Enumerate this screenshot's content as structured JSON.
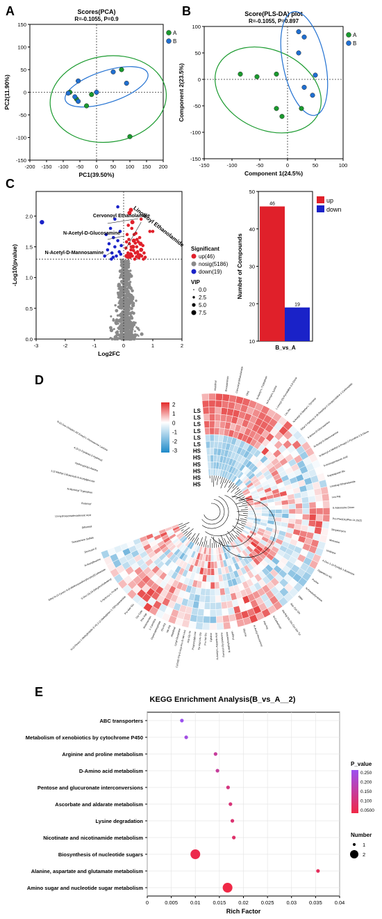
{
  "panel_labels": {
    "A": "A",
    "B": "B",
    "C": "C",
    "D": "D",
    "E": "E"
  },
  "colors": {
    "green": "#1a9a2e",
    "blue": "#1f6fd1",
    "up": "#e0202a",
    "down": "#1a22c8",
    "nosig": "#8a8a8a",
    "heat_high": "#e32a2a",
    "heat_mid": "#ffffff",
    "heat_low": "#1f8ac9"
  },
  "chart_data": [
    {
      "id": "A",
      "type": "scatter",
      "title": "Scores(PCA)",
      "subtitle": "R=-0.1055, P=0.9",
      "xlabel": "PC1(39.50%)",
      "ylabel": "PC2(11.90%)",
      "xlim": [
        -200,
        200
      ],
      "ylim": [
        -150,
        150
      ],
      "xticks": [
        -200,
        -150,
        -100,
        -50,
        0,
        50,
        100,
        150,
        200
      ],
      "yticks": [
        -150,
        -100,
        -50,
        0,
        50,
        100,
        150
      ],
      "legend": [
        "A",
        "B"
      ],
      "series": [
        {
          "name": "A",
          "points": [
            [
              -80,
              0
            ],
            [
              -60,
              -15
            ],
            [
              -30,
              -30
            ],
            [
              -15,
              -5
            ],
            [
              75,
              50
            ],
            [
              100,
              -98
            ]
          ]
        },
        {
          "name": "B",
          "points": [
            [
              -85,
              -2
            ],
            [
              -65,
              -10
            ],
            [
              -55,
              25
            ],
            [
              -55,
              -20
            ],
            [
              0,
              0
            ],
            [
              50,
              45
            ],
            [
              90,
              20
            ]
          ]
        }
      ],
      "ellipses": [
        {
          "series": "A",
          "cx": 35,
          "cy": -15,
          "rx": 175,
          "ry": 95,
          "rot": 8
        },
        {
          "series": "B",
          "cx": 30,
          "cy": 12,
          "rx": 130,
          "ry": 35,
          "rot": 18
        }
      ]
    },
    {
      "id": "B",
      "type": "scatter",
      "title": "Score(PLS-DA) plot",
      "subtitle": "R=-0.1055, P=0.897",
      "xlabel": "Component 1(24.5%)",
      "ylabel": "Component 2(23.5%)",
      "xlim": [
        -150,
        100
      ],
      "ylim": [
        -150,
        100
      ],
      "xticks": [
        -150,
        -100,
        -50,
        0,
        50,
        100
      ],
      "yticks": [
        -150,
        -100,
        -50,
        0,
        50,
        100
      ],
      "legend": [
        "A",
        "B"
      ],
      "series": [
        {
          "name": "A",
          "points": [
            [
              -85,
              10
            ],
            [
              -55,
              5
            ],
            [
              -20,
              10
            ],
            [
              -20,
              -55
            ],
            [
              -10,
              -70
            ],
            [
              25,
              -55
            ]
          ]
        },
        {
          "name": "B",
          "points": [
            [
              20,
              90
            ],
            [
              30,
              80
            ],
            [
              50,
              8
            ],
            [
              30,
              -15
            ],
            [
              45,
              -30
            ],
            [
              20,
              50
            ]
          ]
        }
      ],
      "ellipses": [
        {
          "series": "A",
          "cx": -35,
          "cy": -20,
          "rx": 100,
          "ry": 75,
          "rot": -25
        },
        {
          "series": "B",
          "cx": 30,
          "cy": 30,
          "rx": 38,
          "ry": 100,
          "rot": 12
        }
      ]
    },
    {
      "id": "C1",
      "type": "volcano",
      "xlabel": "Log2FC",
      "ylabel": "-Log10(pvalue)",
      "xlim": [
        -3,
        2
      ],
      "ylim": [
        0,
        2.4
      ],
      "xticks": [
        -3,
        -2,
        -1,
        0,
        1,
        2
      ],
      "yticks": [
        0,
        0.5,
        1,
        1.5,
        2
      ],
      "yticklabels": [
        "0.0",
        "0.5",
        "1.0",
        "1.5",
        "2.0"
      ],
      "threshold_y": 1.3,
      "annotations": [
        {
          "text": "Cervonoyl Ethanolamide",
          "x": -0.35,
          "y": 1.95
        },
        {
          "text": "Linoleoyl Ethanolamide",
          "x": 0.1,
          "y": 1.5
        },
        {
          "text": "N-Acetyl-D-Glucosamine",
          "x": -0.45,
          "y": 1.72
        },
        {
          "text": "N-Acetyl-D-Mannosamine",
          "x": -0.35,
          "y": 1.4
        }
      ],
      "up": [
        [
          0.1,
          1.35
        ],
        [
          0.15,
          1.4
        ],
        [
          0.2,
          1.55
        ],
        [
          0.25,
          1.45
        ],
        [
          0.3,
          1.35
        ],
        [
          0.35,
          1.6
        ],
        [
          0.4,
          1.4
        ],
        [
          0.45,
          1.5
        ],
        [
          0.5,
          1.38
        ],
        [
          0.55,
          1.65
        ],
        [
          0.6,
          1.45
        ],
        [
          0.12,
          1.7
        ],
        [
          0.18,
          1.62
        ],
        [
          0.22,
          1.33
        ],
        [
          0.28,
          1.8
        ],
        [
          0.32,
          1.5
        ],
        [
          0.38,
          1.3
        ],
        [
          0.42,
          1.72
        ],
        [
          0.48,
          1.42
        ],
        [
          0.52,
          1.32
        ],
        [
          0.58,
          1.55
        ],
        [
          0.62,
          1.35
        ],
        [
          0.7,
          1.4
        ],
        [
          0.9,
          1.75
        ],
        [
          1.0,
          1.75
        ],
        [
          0.25,
          2.1
        ],
        [
          0.6,
          1.95
        ],
        [
          0.08,
          1.48
        ],
        [
          0.14,
          1.33
        ],
        [
          0.16,
          1.85
        ],
        [
          0.24,
          1.38
        ],
        [
          0.34,
          1.44
        ],
        [
          0.36,
          1.7
        ],
        [
          0.44,
          1.34
        ],
        [
          0.5,
          1.58
        ],
        [
          0.56,
          1.36
        ],
        [
          0.66,
          1.52
        ],
        [
          0.74,
          1.33
        ],
        [
          0.1,
          1.58
        ],
        [
          0.2,
          1.36
        ],
        [
          0.3,
          1.9
        ],
        [
          0.4,
          1.56
        ],
        [
          0.46,
          1.62
        ],
        [
          0.26,
          1.5
        ],
        [
          0.68,
          1.3
        ],
        [
          0.2,
          2.05
        ]
      ],
      "down": [
        [
          -2.8,
          1.9
        ],
        [
          -0.6,
          1.7
        ],
        [
          -0.55,
          1.45
        ],
        [
          -0.5,
          1.55
        ],
        [
          -0.45,
          1.8
        ],
        [
          -0.4,
          1.4
        ],
        [
          -0.35,
          1.65
        ],
        [
          -0.3,
          1.5
        ],
        [
          -0.25,
          1.35
        ],
        [
          -0.2,
          1.6
        ],
        [
          -0.15,
          1.42
        ],
        [
          -0.1,
          1.38
        ],
        [
          -0.3,
          1.95
        ],
        [
          -0.2,
          2.15
        ],
        [
          -0.65,
          1.35
        ],
        [
          -0.42,
          1.3
        ],
        [
          -0.08,
          1.52
        ],
        [
          -0.12,
          1.75
        ],
        [
          -0.36,
          1.33
        ]
      ],
      "legend_title": "Significant",
      "legend": [
        "up(46)",
        "nosig(5186)",
        "down(19)"
      ],
      "vip_title": "VIP",
      "vip_values": [
        "0.0",
        "2.5",
        "5.0",
        "7.5"
      ]
    },
    {
      "id": "C2",
      "type": "bar",
      "categories": [
        "B_vs_A"
      ],
      "series": [
        {
          "name": "up",
          "values": [
            46
          ]
        },
        {
          "name": "down",
          "values": [
            19
          ]
        }
      ],
      "ylabel": "Number of Compounds",
      "ylim": [
        10,
        50
      ],
      "yticks": [
        10,
        20,
        30,
        40,
        50
      ],
      "legend": [
        "up",
        "down"
      ]
    },
    {
      "id": "D",
      "type": "heatmap",
      "scale_labels": [
        "2",
        "1",
        "0",
        "-1",
        "-2",
        "-3"
      ],
      "row_labels": [
        "LS",
        "LS",
        "LS",
        "LS",
        "LS",
        "LS",
        "HS",
        "HS",
        "HS",
        "HS",
        "HS",
        "HS"
      ],
      "columns": [
        "Pro Met Glu",
        "N-(4-Fluoro-1-Methylindolin-3-Yl)-2-(2-Methylphen-1-Yl)Propanamide",
        "3-Hydroxy-L-Proline",
        "3-Oxo-16,16-Dehydrocholesteryl",
        "Ethyl N-(2-Cyano-3-(4-Methoxyanilino)Acryloyl)Carbamate",
        "N-Acetylleucine",
        "Dexiruxin E",
        "Testosterone Sulfate",
        "Diflunisal",
        "13-Hydroxyoctadecadienoic Acid",
        "Butanoyl",
        "N-Myristoyl Tryptophan",
        "1-(2-Methyl-2-Butenoyl)-N-Acetylglucose",
        "Hydroxyprolyl-Alanine",
        "4-(3-(1-Pyridine)-2-Hydroxy-1-(2-Hydroxyethyl))",
        "N-(3-Oxo-Octadec-9Z-Enoyl)-L-Homoserine Lactone",
        "Pregnin",
        "N-Methylhistamine",
        "Fumaryl-Glycylalanine",
        "N-Acetyl-L-Aspartic Acid",
        "Cytidine",
        "Pro Val Gly",
        "Tyr Asp Leu Gly",
        "Propionylglycine",
        "Asp Gly Ile",
        "Cyclo(D-Trp-D-Asp-Pro-D-Val-Leu)",
        "Lysyl-Glutamine",
        "Linoleoyl Ethanolamide",
        "Histidinal",
        "Val Arg",
        "Glu Arg",
        "Glycerophosphate",
        "Proline",
        "L-Carnitine",
        "Ambrisentan",
        "Leu Arg",
        "Pro Asp Val",
        "Ser Phe",
        "Asp Ile",
        "N-Acetyl-D-Glucosamine",
        "N-Acetyl-D-Mannosamine",
        "Cervonoyl Ethanolamide",
        "Uridine",
        "Cytosine",
        "Succinic acid",
        "Phe Asp"
      ],
      "top_labels": [
        "Histidinal",
        "Eicosatrienoic",
        "Cervonoyl Ethanolamide",
        "TRS",
        "N-Acetyl-L-Tryptophan",
        "N-Formyl-L-Lysine",
        "L-Leucyl-(S)-Pyrrolidine-2,5-Dione",
        "Leu Ala",
        "N-Acetyl-O-Methyl-L-Tyrosine",
        "Ethyl-3-Hydroxy-4-(8-Dimethyl-2-Oxopyrrolidine-1-Carboxylate",
        "9-Amino-D-Glucosamine",
        "N-Acetyl-D-Mannosamine",
        "N-Benzyl-4-Methyl-3-Propyl-2-Pyrroline-2,5-Dione",
        "5-Aminopentanoic Acid",
        "Soyasaponin Bb",
        "Linoleoyl Ethanolamide",
        "Leu Arg",
        "S-Adenosine Dimer",
        "Pro-Phe(Glu)Phe-14,15(Z)",
        "Streptomycin",
        "Mimosine",
        "Uridinine",
        "4-Oxo-1-(3-Pyridyl)-1-Butanone",
        "Gigantecin M1",
        "Proline",
        "N-Feruloyltyramine",
        "Iditol",
        "Asp Cys Gln",
        "Ala Arg Glu Glu Cys Gln Tyr",
        "N-Carbamoyl",
        "Asp Arg",
        "N-Acetyl-Neuraminic",
        "Glycine"
      ],
      "left_labels": [
        "Pro Met Glu",
        "N-(4-Fluoro-1-Methylindolin-3-Yl)-2-(2-Methylphen-1-Yl)Propanamide",
        "3-Hydroxy-L-Proline",
        "3-Oxo-16,16-Dehydrocholesteryl",
        "Ethyl N-(2-Cyano-3-(4-Methoxyanilino)Acryloyl)Carbamate",
        "N-Acetylleucine",
        "Dexiruxin E",
        "Testosterone Sulfate",
        "Diflunisal",
        "13-Hydroxyoctadecadienoic Acid",
        "Butanoyl",
        "N-Myristoyl Tryptophan",
        "1-(2-Methyl-2-Butenoyl)-N-Acetylglucose",
        "Hydroxyprolyl-Alanine",
        "4-(3-(1-Pyridine)-2-Hydroxy)",
        "N-(3-Oxo-Octadec-9Z-Enoyl)-L-Homoserine Lactone"
      ],
      "bottom_labels": [
        "Pregnin",
        "N-Methylhistamine",
        "Fumaryl-Glycylalanine",
        "N-Acetyl-L-Aspartic Acid",
        "Cytidine",
        "Pro Val Gly",
        "Tyr Asp Leu Gly",
        "Propionylglycine",
        "Asp Gly Ile",
        "Cyclo(D-Trp-D-Asp-Pro-D-Val-Leu)",
        "Lysyl-Glutamine",
        "Histidinal",
        "Val Arg",
        "Glu Arg",
        "Glycerophosphate",
        "L-Carnitine",
        "Ambrisentan",
        "Phe Asp",
        "Gly-Cyto"
      ]
    },
    {
      "id": "E",
      "type": "bubble",
      "title": "KEGG Enrichment Analysis(B_vs_A__2)",
      "xlabel": "Rich Factor",
      "xlim": [
        0,
        0.04
      ],
      "xticks": [
        0,
        0.005,
        0.01,
        0.015,
        0.02,
        0.025,
        0.03,
        0.035,
        0.04
      ],
      "xticklabels": [
        "0",
        "0.005",
        "0.01",
        "0.015",
        "0.02",
        "0.025",
        "0.03",
        "0.035",
        "0.04"
      ],
      "categories": [
        "ABC transporters",
        "Metabolism of xenobiotics by cytochrome P450",
        "Arginine and proline metabolism",
        "D-Amino acid metabolism",
        "Pentose and glucuronate interconversions",
        "Ascorbate and aldarate metabolism",
        "Lysine degradation",
        "Nicotinate and nicotinamide metabolism",
        "Biosynthesis of nucleotide sugars",
        "Alanine, aspartate and glutamate metabolism",
        "Amino sugar and nucleotide sugar metabolism"
      ],
      "rich_factor": [
        0.0072,
        0.0081,
        0.0142,
        0.0146,
        0.0168,
        0.0173,
        0.0177,
        0.018,
        0.01,
        0.0355,
        0.0167
      ],
      "number": [
        1,
        1,
        1,
        1,
        1,
        1,
        1,
        1,
        2,
        1,
        2
      ],
      "p_value": [
        0.26,
        0.24,
        0.14,
        0.14,
        0.1,
        0.09,
        0.08,
        0.07,
        0.03,
        0.05,
        0.02
      ],
      "color_title": "P_value",
      "color_ticks": [
        "0.250",
        "0.200",
        "0.150",
        "0.100",
        "0.0500"
      ],
      "size_title": "Number",
      "size_ticks": [
        "1",
        "2"
      ]
    }
  ]
}
